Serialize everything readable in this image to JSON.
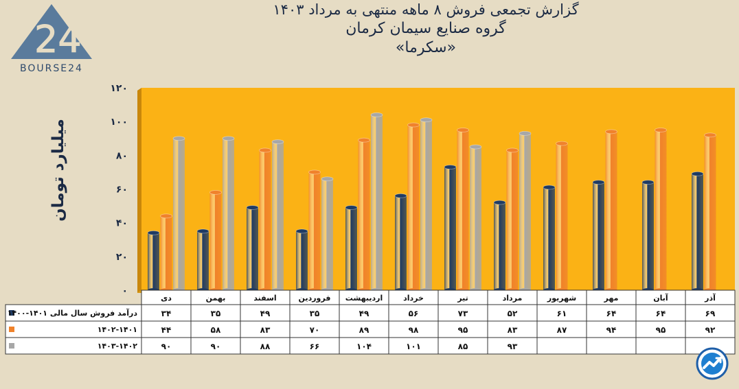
{
  "title": {
    "line1": "گزارش تجمعی فروش ۸ ماهه منتهی به مرداد ۱۴۰۳",
    "line2": "گروه صنایع سیمان کرمان",
    "line3": "«سکرما»"
  },
  "logo": {
    "text": "BOURSE24",
    "mark": "24"
  },
  "colors": {
    "plot_bg": "#fbb215",
    "series": [
      "#1f3b63",
      "#f0822b",
      "#a7a7a7"
    ],
    "axis_text": "#1b2a44"
  },
  "chart_data": {
    "type": "bar",
    "ylabel": "میلیارد تومان",
    "ylim": [
      0,
      120
    ],
    "yticks": [
      "۰",
      "۲۰",
      "۴۰",
      "۶۰",
      "۸۰",
      "۱۰۰",
      "۱۲۰"
    ],
    "categories": [
      "دی",
      "بهمن",
      "اسفند",
      "فروردین",
      "اردیبهشت",
      "خرداد",
      "تیر",
      "مرداد",
      "شهریور",
      "مهر",
      "آبان",
      "آذر"
    ],
    "series": [
      {
        "name": "درآمد فروش سال مالی ۱۴۰۱-۱۴۰۰",
        "values": [
          34,
          35,
          49,
          35,
          49,
          56,
          73,
          52,
          61,
          64,
          64,
          69
        ],
        "labels": [
          "۳۴",
          "۳۵",
          "۴۹",
          "۳۵",
          "۴۹",
          "۵۶",
          "۷۳",
          "۵۲",
          "۶۱",
          "۶۴",
          "۶۴",
          "۶۹"
        ]
      },
      {
        "name": "۱۴۰۲-۱۴۰۱",
        "values": [
          44,
          58,
          83,
          70,
          89,
          98,
          95,
          83,
          87,
          94,
          95,
          92
        ],
        "labels": [
          "۴۴",
          "۵۸",
          "۸۳",
          "۷۰",
          "۸۹",
          "۹۸",
          "۹۵",
          "۸۳",
          "۸۷",
          "۹۴",
          "۹۵",
          "۹۲"
        ]
      },
      {
        "name": "۱۴۰۳-۱۴۰۲",
        "values": [
          90,
          90,
          88,
          66,
          104,
          101,
          85,
          93,
          null,
          null,
          null,
          null
        ],
        "labels": [
          "۹۰",
          "۹۰",
          "۸۸",
          "۶۶",
          "۱۰۴",
          "۱۰۱",
          "۸۵",
          "۹۳",
          "",
          "",
          "",
          ""
        ]
      }
    ],
    "legend": "table-below"
  }
}
